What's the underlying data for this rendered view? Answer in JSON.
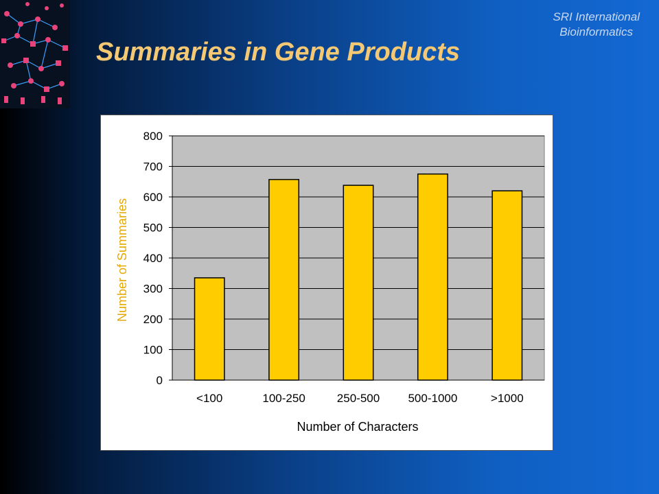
{
  "header": {
    "org_line1": "SRI International",
    "org_line2": "Bioinformatics",
    "title": "Summaries in Gene Products"
  },
  "logo": {
    "icon": "pathway-diagram-icon",
    "node_color": "#e8437a",
    "edge_color": "#3aa0ff"
  },
  "colors": {
    "bar_fill": "#ffcc00",
    "plot_bg": "#c0c0c0",
    "title": "#f5c873",
    "axis_text": "#000000",
    "axis_label": "#e6a800"
  },
  "chart_data": {
    "type": "bar",
    "title": "",
    "categories": [
      "<100",
      "100-250",
      "250-500",
      "500-1000",
      ">1000"
    ],
    "values": [
      335,
      657,
      638,
      675,
      620
    ],
    "xlabel": "Number of Characters",
    "ylabel": "Number of Summaries",
    "ylim": [
      0,
      800
    ],
    "yticks": [
      0,
      100,
      200,
      300,
      400,
      500,
      600,
      700,
      800
    ],
    "grid": true,
    "legend": "none"
  }
}
